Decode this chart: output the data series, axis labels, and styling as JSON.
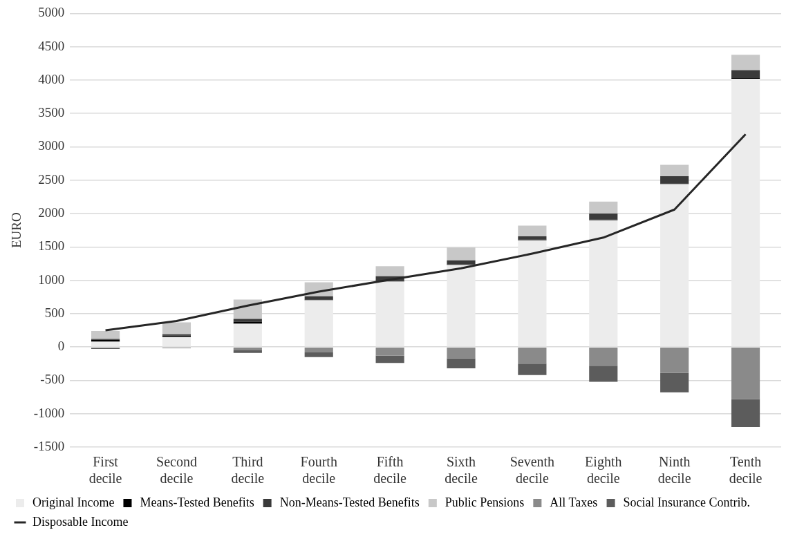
{
  "chart_data": {
    "type": "bar",
    "stacked": true,
    "ylabel": "EURO",
    "categories": [
      "First decile",
      "Second decile",
      "Third decile",
      "Fourth decile",
      "Fifth decile",
      "Sixth decile",
      "Seventh decile",
      "Eighth decile",
      "Ninth decile",
      "Tenth decile"
    ],
    "series": [
      {
        "name": "Original Income",
        "color": "#ececec",
        "values": [
          80,
          150,
          350,
          700,
          980,
          1230,
          1600,
          1900,
          2440,
          4020
        ]
      },
      {
        "name": "Means-Tested Benefits",
        "color": "#000000",
        "values": [
          30,
          20,
          30,
          10,
          10,
          10,
          10,
          10,
          10,
          10
        ]
      },
      {
        "name": "Non-Means-Tested Benefits",
        "color": "#3a3a3a",
        "values": [
          10,
          20,
          40,
          50,
          70,
          60,
          50,
          90,
          110,
          120
        ]
      },
      {
        "name": "Public Pensions",
        "color": "#c8c8c8",
        "values": [
          120,
          180,
          290,
          210,
          150,
          190,
          160,
          180,
          170,
          230
        ]
      },
      {
        "name": "All Taxes",
        "color": "#8a8a8a",
        "values": [
          -10,
          -10,
          -50,
          -80,
          -130,
          -170,
          -250,
          -280,
          -390,
          -780
        ]
      },
      {
        "name": "Social Insurance Contrib.",
        "color": "#5c5c5c",
        "values": [
          -20,
          -10,
          -40,
          -70,
          -110,
          -150,
          -170,
          -240,
          -290,
          -420
        ]
      },
      {
        "name": "Disposable Income",
        "type": "line",
        "color": "#262626",
        "values": [
          250,
          390,
          620,
          830,
          1010,
          1180,
          1400,
          1640,
          2060,
          3190
        ]
      }
    ],
    "ylim": [
      -1500,
      5000
    ],
    "yticks": [
      -1500,
      -1000,
      -500,
      0,
      500,
      1000,
      1500,
      2000,
      2500,
      3000,
      3500,
      4000,
      4500,
      5000
    ],
    "grid": "y",
    "legend": "bottom",
    "marker": "none"
  }
}
